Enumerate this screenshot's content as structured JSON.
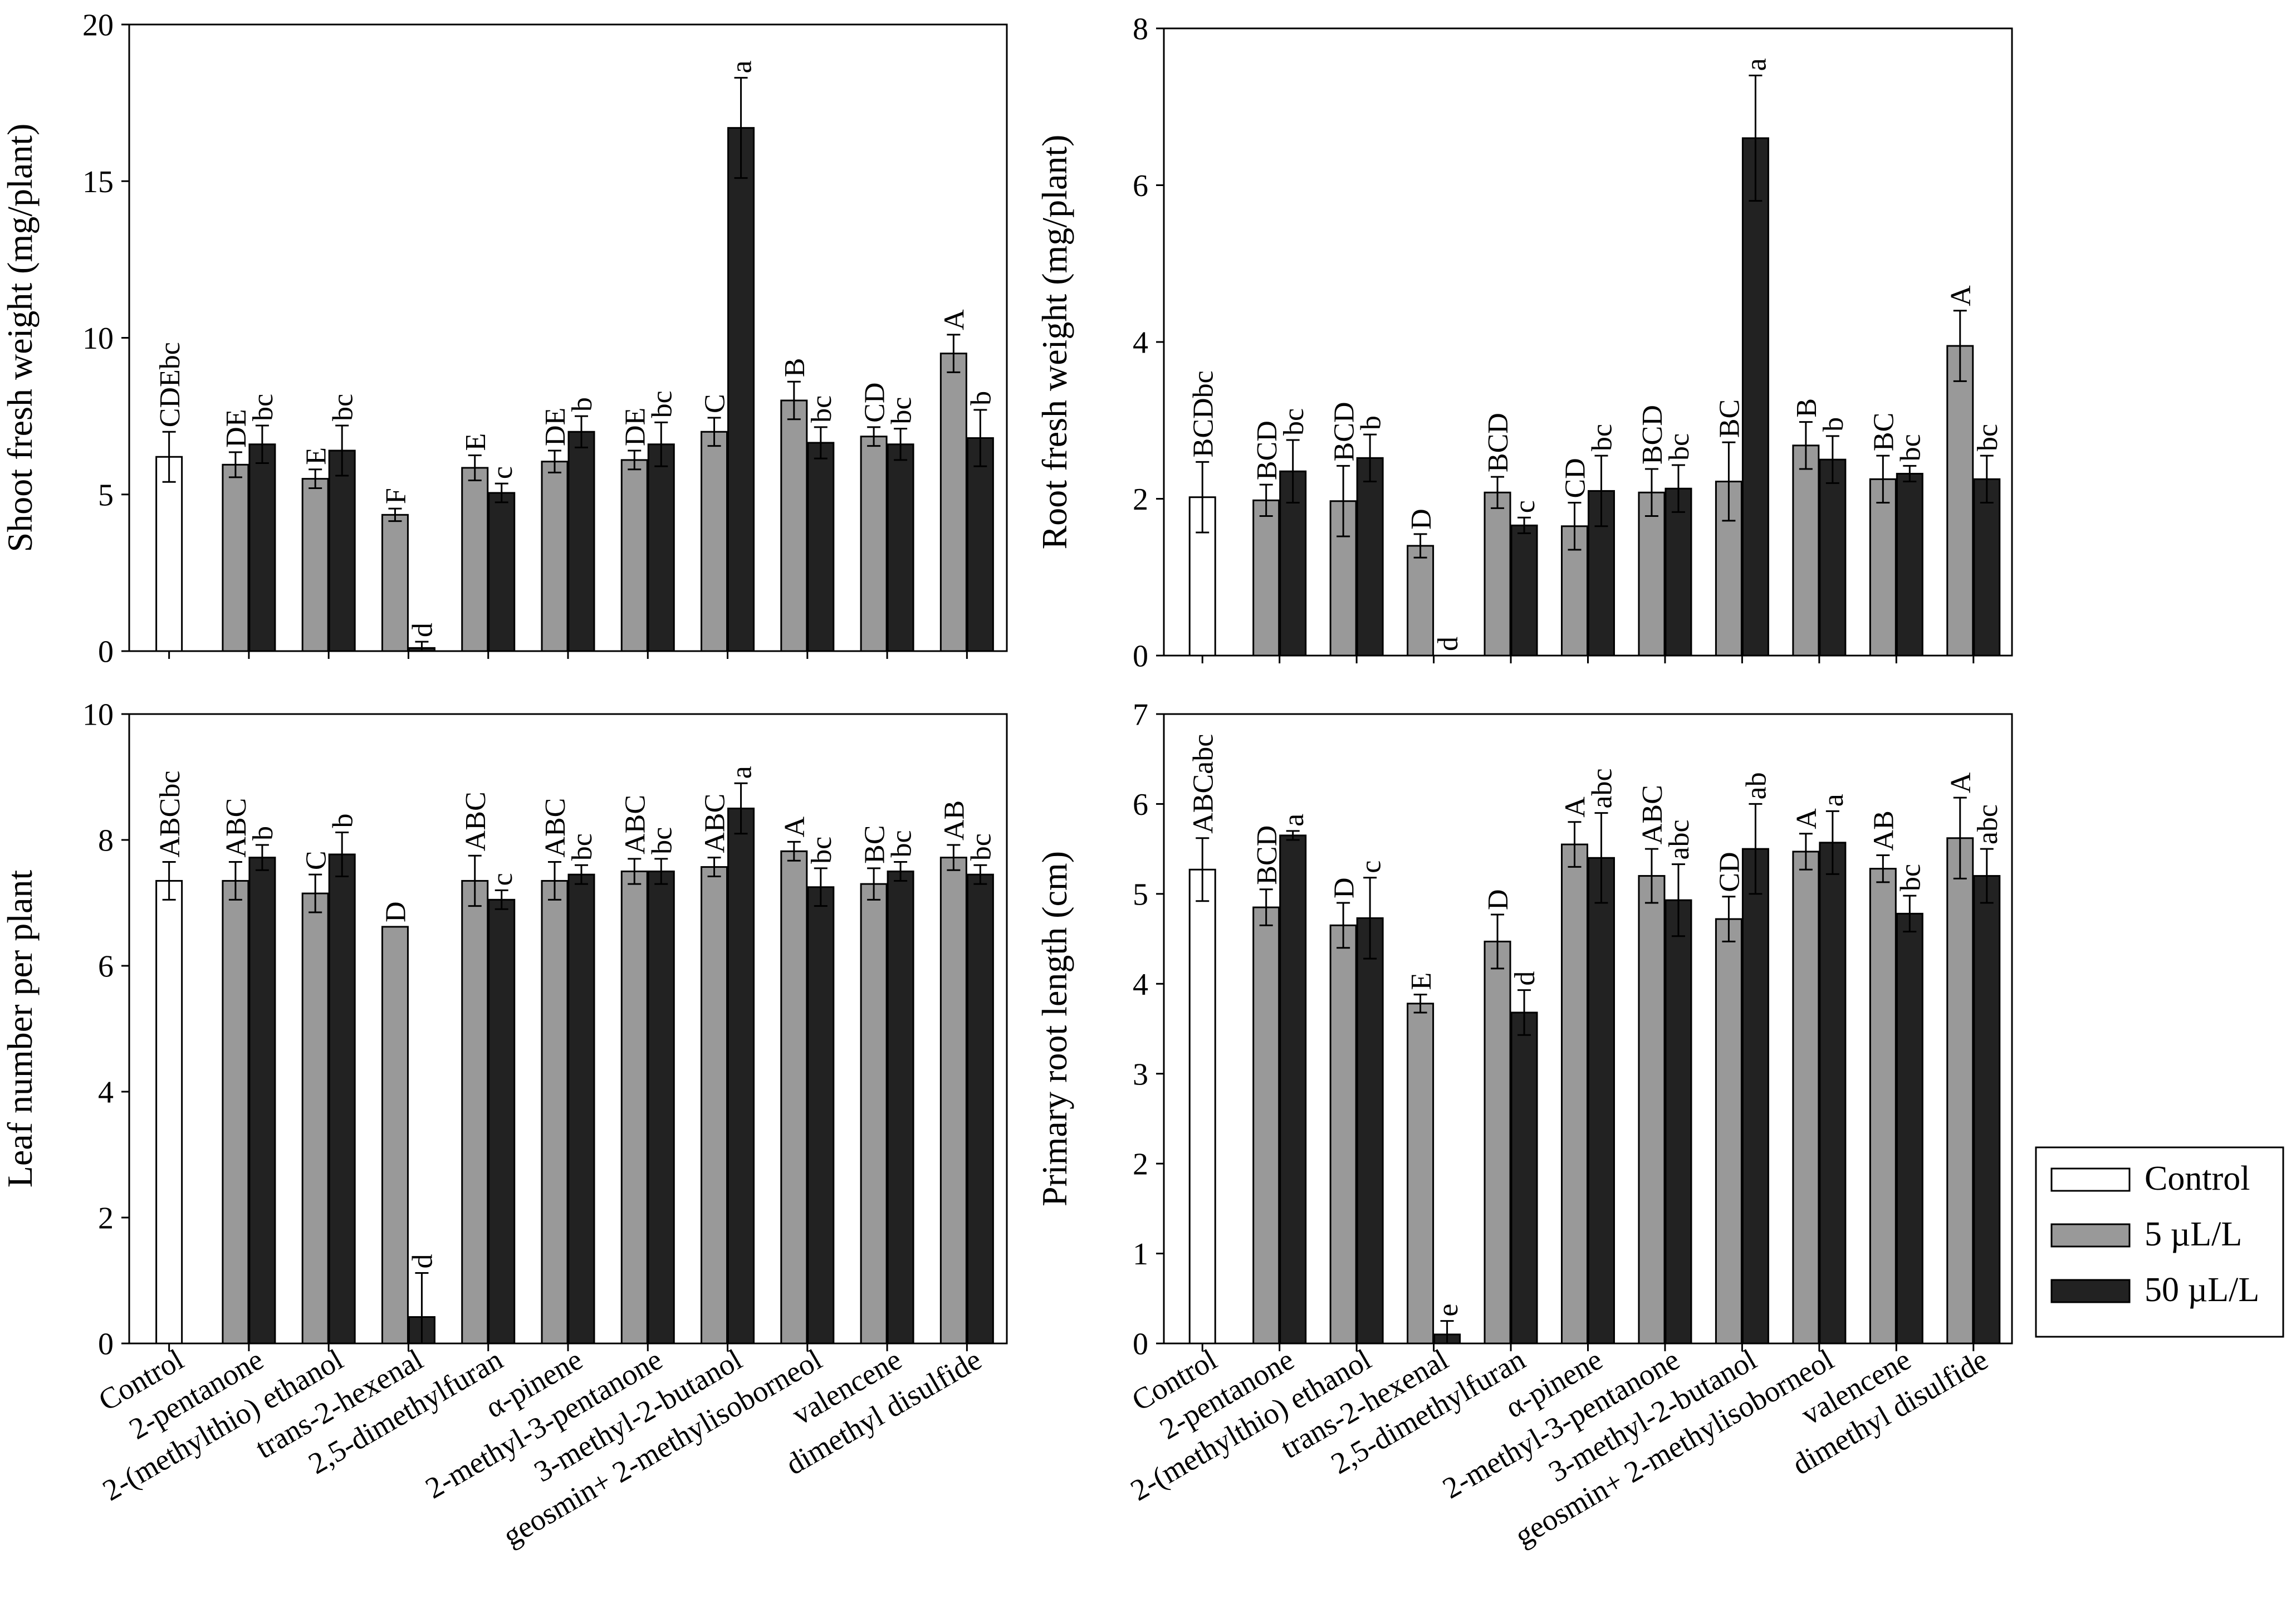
{
  "legend": {
    "position": "right",
    "items": [
      {
        "label": "Control",
        "color": "#ffffff"
      },
      {
        "label": "5 µL/L",
        "color": "#999999"
      },
      {
        "label": "50 µL/L",
        "color": "#222222"
      }
    ]
  },
  "colors": {
    "control": "#ffffff",
    "low": "#999999",
    "high": "#222222",
    "axis": "#000000"
  },
  "chart_data": [
    {
      "type": "bar",
      "panel": "top-left",
      "ylabel": "Shoot fresh weight (mg/plant)",
      "xlabel": "",
      "ylim": [
        0,
        20
      ],
      "yticks": [
        0,
        5,
        10,
        15,
        20
      ],
      "categories": [
        "Control",
        "2-pentanone",
        "2-(methylthio) ethanol",
        "trans-2-hexenal",
        "2,5-dimethylfuran",
        "α-pinene",
        "2-methyl-3-pentanone",
        "3-methyl-2-butanol",
        "geosmin+ 2-methylisoborneol",
        "valencene",
        "dimethyl disulfide"
      ],
      "series": [
        {
          "name": "Control",
          "values": [
            6.2,
            null,
            null,
            null,
            null,
            null,
            null,
            null,
            null,
            null,
            null
          ],
          "errors": [
            0.8,
            null,
            null,
            null,
            null,
            null,
            null,
            null,
            null,
            null,
            null
          ],
          "letters": [
            "CDEbc",
            "",
            "",
            "",
            "",
            "",
            "",
            "",
            "",
            "",
            ""
          ]
        },
        {
          "name": "5 µL/L",
          "values": [
            null,
            5.95,
            5.5,
            4.35,
            5.85,
            6.05,
            6.1,
            7.0,
            8.0,
            6.85,
            9.5
          ],
          "errors": [
            null,
            0.4,
            0.3,
            0.2,
            0.4,
            0.35,
            0.3,
            0.45,
            0.6,
            0.3,
            0.6
          ],
          "letters": [
            "",
            "DE",
            "E",
            "F",
            "E",
            "DE",
            "DE",
            "C",
            "B",
            "CD",
            "A"
          ]
        },
        {
          "name": "50 µL/L",
          "values": [
            null,
            6.6,
            6.4,
            0.1,
            5.05,
            7.0,
            6.6,
            16.7,
            6.65,
            6.6,
            6.8
          ],
          "errors": [
            null,
            0.6,
            0.8,
            0.2,
            0.3,
            0.5,
            0.7,
            1.6,
            0.5,
            0.5,
            0.9
          ],
          "letters": [
            "",
            "bc",
            "bc",
            "d",
            "c",
            "b",
            "bc",
            "a",
            "bc",
            "bc",
            "b"
          ]
        }
      ]
    },
    {
      "type": "bar",
      "panel": "top-right",
      "ylabel": "Root fresh weight (mg/plant)",
      "xlabel": "",
      "ylim": [
        0,
        8
      ],
      "yticks": [
        0,
        2,
        4,
        6,
        8
      ],
      "categories": [
        "Control",
        "2-pentanone",
        "2-(methylthio) ethanol",
        "trans-2-hexenal",
        "2,5-dimethylfuran",
        "α-pinene",
        "2-methyl-3-pentanone",
        "3-methyl-2-butanol",
        "geosmin+ 2-methylisoborneol",
        "valencene",
        "dimethyl disulfide"
      ],
      "series": [
        {
          "name": "Control",
          "values": [
            2.02,
            null,
            null,
            null,
            null,
            null,
            null,
            null,
            null,
            null,
            null
          ],
          "errors": [
            0.45,
            null,
            null,
            null,
            null,
            null,
            null,
            null,
            null,
            null,
            null
          ],
          "letters": [
            "BCDbc",
            "",
            "",
            "",
            "",
            "",
            "",
            "",
            "",
            "",
            ""
          ]
        },
        {
          "name": "5 µL/L",
          "values": [
            null,
            1.98,
            1.97,
            1.4,
            2.08,
            1.65,
            2.08,
            2.22,
            2.68,
            2.25,
            3.95
          ],
          "errors": [
            null,
            0.2,
            0.45,
            0.15,
            0.2,
            0.3,
            0.3,
            0.5,
            0.3,
            0.3,
            0.45
          ],
          "letters": [
            "",
            "BCD",
            "BCD",
            "D",
            "BCD",
            "CD",
            "BCD",
            "BC",
            "B",
            "BC",
            "A"
          ]
        },
        {
          "name": "50 µL/L",
          "values": [
            null,
            2.35,
            2.52,
            0.0,
            1.66,
            2.1,
            2.13,
            6.6,
            2.5,
            2.32,
            2.25
          ],
          "errors": [
            null,
            0.4,
            0.3,
            0.0,
            0.1,
            0.45,
            0.3,
            0.8,
            0.3,
            0.1,
            0.3
          ],
          "letters": [
            "",
            "bc",
            "b",
            "d",
            "c",
            "bc",
            "bc",
            "a",
            "b",
            "bc",
            "bc"
          ]
        }
      ]
    },
    {
      "type": "bar",
      "panel": "bottom-left",
      "ylabel": "Leaf number per plant",
      "xlabel": "",
      "ylim": [
        0,
        10
      ],
      "yticks": [
        0,
        2,
        4,
        6,
        8,
        10
      ],
      "categories": [
        "Control",
        "2-pentanone",
        "2-(methylthio) ethanol",
        "trans-2-hexenal",
        "2,5-dimethylfuran",
        "α-pinene",
        "2-methyl-3-pentanone",
        "3-methyl-2-butanol",
        "geosmin+ 2-methylisoborneol",
        "valencene",
        "dimethyl disulfide"
      ],
      "series": [
        {
          "name": "Control",
          "values": [
            7.35,
            null,
            null,
            null,
            null,
            null,
            null,
            null,
            null,
            null,
            null
          ],
          "errors": [
            0.3,
            null,
            null,
            null,
            null,
            null,
            null,
            null,
            null,
            null,
            null
          ],
          "letters": [
            "ABCbc",
            "",
            "",
            "",
            "",
            "",
            "",
            "",
            "",
            "",
            ""
          ]
        },
        {
          "name": "5 µL/L",
          "values": [
            null,
            7.35,
            7.15,
            6.62,
            7.35,
            7.35,
            7.5,
            7.57,
            7.82,
            7.3,
            7.72
          ],
          "errors": [
            null,
            0.3,
            0.3,
            0.0,
            0.4,
            0.3,
            0.2,
            0.15,
            0.15,
            0.25,
            0.2
          ],
          "letters": [
            "",
            "ABC",
            "C",
            "D",
            "ABC",
            "ABC",
            "ABC",
            "ABC",
            "A",
            "BC",
            "AB"
          ]
        },
        {
          "name": "50 µL/L",
          "values": [
            null,
            7.72,
            7.77,
            0.42,
            7.05,
            7.45,
            7.5,
            8.5,
            7.25,
            7.5,
            7.45
          ],
          "errors": [
            null,
            0.2,
            0.35,
            0.7,
            0.15,
            0.15,
            0.2,
            0.4,
            0.3,
            0.15,
            0.15
          ],
          "letters": [
            "",
            "b",
            "b",
            "d",
            "c",
            "bc",
            "bc",
            "a",
            "bc",
            "bc",
            "bc"
          ]
        }
      ]
    },
    {
      "type": "bar",
      "panel": "bottom-right",
      "ylabel": "Primary root length (cm)",
      "xlabel": "",
      "ylim": [
        0,
        7
      ],
      "yticks": [
        0,
        1,
        2,
        3,
        4,
        5,
        6,
        7
      ],
      "categories": [
        "Control",
        "2-pentanone",
        "2-(methylthio) ethanol",
        "trans-2-hexenal",
        "2,5-dimethylfuran",
        "α-pinene",
        "2-methyl-3-pentanone",
        "3-methyl-2-butanol",
        "geosmin+ 2-methylisoborneol",
        "valencene",
        "dimethyl disulfide"
      ],
      "series": [
        {
          "name": "Control",
          "values": [
            5.27,
            null,
            null,
            null,
            null,
            null,
            null,
            null,
            null,
            null,
            null
          ],
          "errors": [
            0.35,
            null,
            null,
            null,
            null,
            null,
            null,
            null,
            null,
            null,
            null
          ],
          "letters": [
            "ABCabc",
            "",
            "",
            "",
            "",
            "",
            "",
            "",
            "",
            "",
            ""
          ]
        },
        {
          "name": "5 µL/L",
          "values": [
            null,
            4.85,
            4.65,
            3.78,
            4.47,
            5.55,
            5.2,
            4.72,
            5.47,
            5.28,
            5.62
          ],
          "errors": [
            null,
            0.2,
            0.25,
            0.1,
            0.3,
            0.25,
            0.3,
            0.25,
            0.2,
            0.15,
            0.45
          ],
          "letters": [
            "",
            "BCD",
            "D",
            "E",
            "D",
            "A",
            "ABC",
            "CD",
            "A",
            "AB",
            "A"
          ]
        },
        {
          "name": "50 µL/L",
          "values": [
            null,
            5.65,
            4.73,
            0.1,
            3.68,
            5.4,
            4.93,
            5.5,
            5.57,
            4.78,
            5.2
          ],
          "errors": [
            null,
            0.05,
            0.45,
            0.15,
            0.25,
            0.5,
            0.4,
            0.5,
            0.35,
            0.2,
            0.3
          ],
          "letters": [
            "",
            "a",
            "c",
            "e",
            "d",
            "abc",
            "abc",
            "ab",
            "a",
            "bc",
            "abc"
          ]
        }
      ]
    }
  ]
}
